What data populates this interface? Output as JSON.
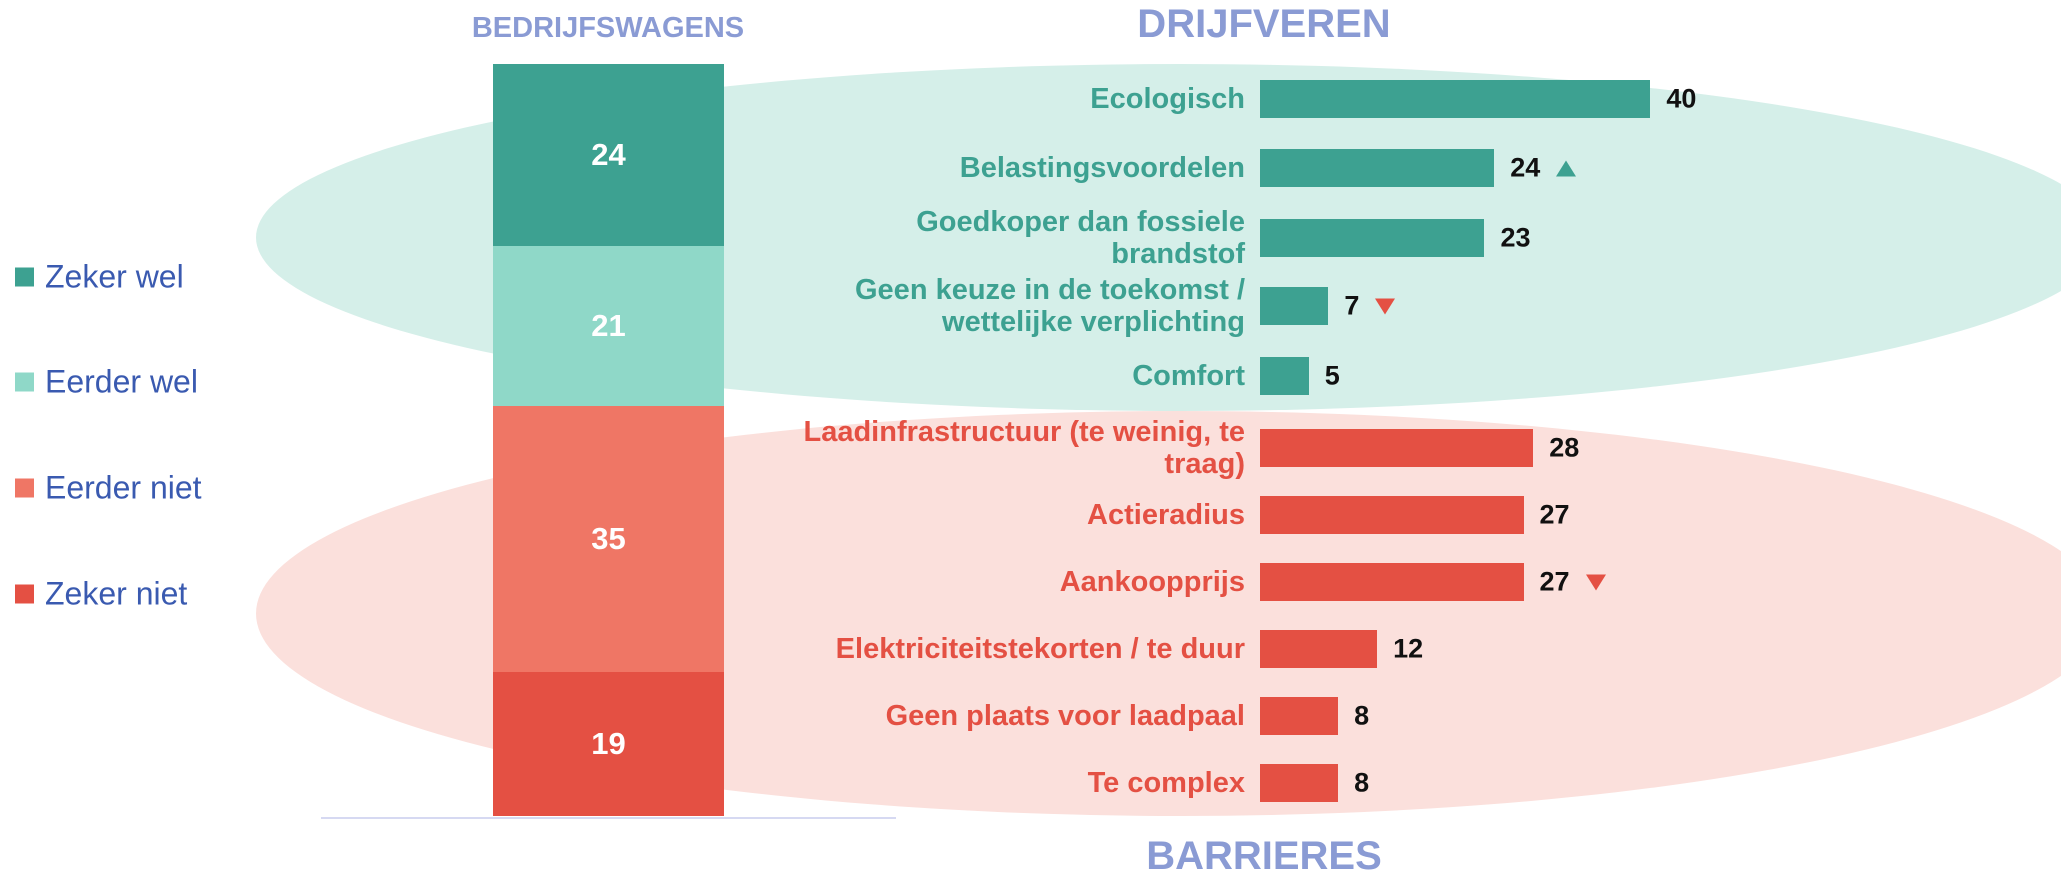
{
  "chart_data": [
    {
      "type": "stacked-bar",
      "title": "BEDRIJFSWAGENS",
      "series": [
        {
          "name": "Zeker wel",
          "color": "#3da191",
          "values": [
            24
          ]
        },
        {
          "name": "Eerder wel",
          "color": "#8fd8c8",
          "values": [
            21
          ]
        },
        {
          "name": "Eerder niet",
          "color": "#ef7665",
          "values": [
            35
          ]
        },
        {
          "name": "Zeker niet",
          "color": "#e45043",
          "values": [
            19
          ]
        }
      ]
    },
    {
      "type": "hbar",
      "title": "DRIJFVEREN",
      "color": "#3da191",
      "categories": [
        "Ecologisch",
        "Belastingsvoordelen",
        "Goedkoper dan fossiele brandstof",
        "Geen keuze in de toekomst / wettelijke verplichting",
        "Comfort"
      ],
      "values": [
        40,
        24,
        23,
        7,
        5
      ],
      "trends": [
        null,
        "up",
        null,
        "down",
        null
      ]
    },
    {
      "type": "hbar",
      "title": "BARRIERES",
      "color": "#e45043",
      "categories": [
        "Laadinfrastructuur (te weinig, te traag)",
        "Actieradius",
        "Aankoopprijs",
        "Elektriciteitstekorten / te duur",
        "Geen plaats voor laadpaal",
        "Te complex"
      ],
      "values": [
        28,
        27,
        27,
        12,
        8,
        8
      ],
      "trends": [
        null,
        null,
        "down",
        null,
        null,
        null
      ]
    }
  ]
}
